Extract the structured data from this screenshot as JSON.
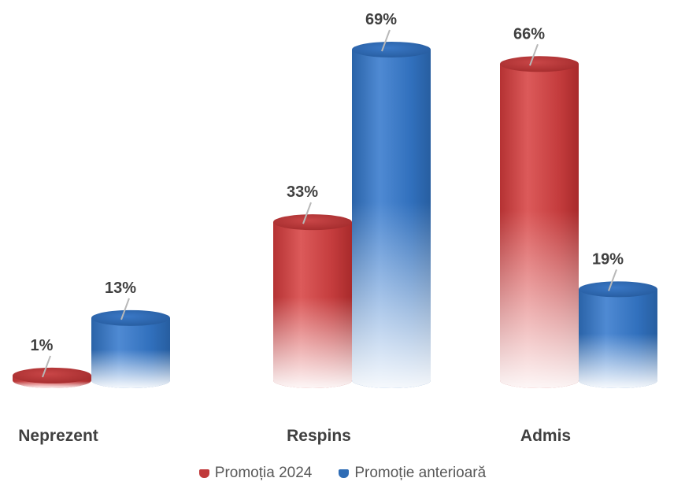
{
  "chart_data": {
    "type": "bar",
    "categories": [
      "Neprezent",
      "Respins",
      "Admis"
    ],
    "series": [
      {
        "name": "Promoția 2024",
        "values": [
          1,
          33,
          66
        ],
        "color": "#c0393a",
        "label": "Promoția 2024"
      },
      {
        "name": "Promoție anterioară",
        "values": [
          13,
          69,
          19
        ],
        "color": "#2e6cb5",
        "label": "Promoție anterioară"
      }
    ],
    "data_labels": [
      [
        "1%",
        "33%",
        "66%"
      ],
      [
        "13%",
        "69%",
        "19%"
      ]
    ],
    "ylim": [
      0,
      69
    ],
    "legend_position": "bottom",
    "grid": false
  }
}
